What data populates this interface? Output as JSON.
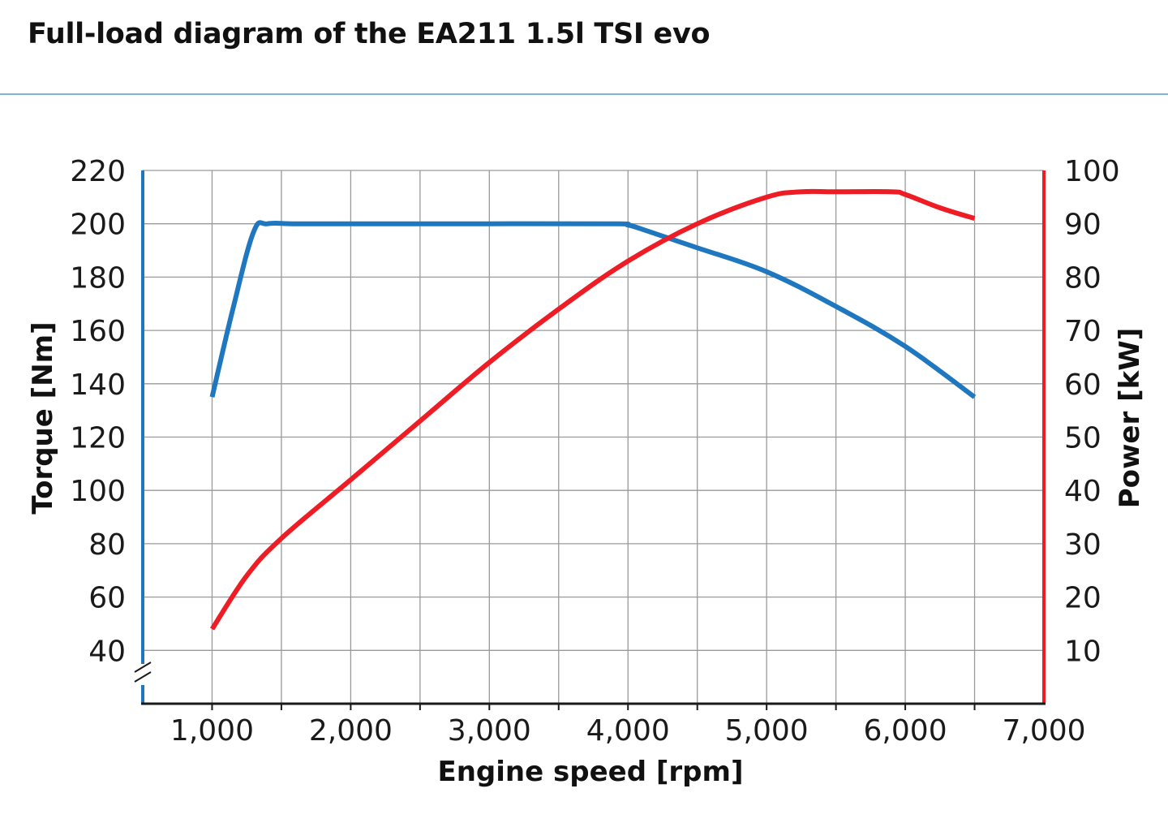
{
  "title": "Full-load diagram of the EA211 1.5l TSI evo",
  "colors": {
    "torque": "#1f77c0",
    "power": "#ee1c24",
    "grid": "#9a9a9a",
    "title_rule": "#7fb6d6"
  },
  "chart_data": {
    "type": "line",
    "title": "Full-load diagram of the EA211 1.5l TSI evo",
    "xlabel": "Engine speed [rpm]",
    "ylabel_left": "Torque [Nm]",
    "ylabel_right": "Power [kW]",
    "xlim": [
      500,
      7000
    ],
    "ylim_left": [
      20,
      220
    ],
    "ylim_right": [
      0,
      100
    ],
    "x_ticks": [
      {
        "value": 1000,
        "label": "1,000"
      },
      {
        "value": 2000,
        "label": "2,000"
      },
      {
        "value": 3000,
        "label": "3,000"
      },
      {
        "value": 4000,
        "label": "4,000"
      },
      {
        "value": 5000,
        "label": "5,000"
      },
      {
        "value": 6000,
        "label": "6,000"
      },
      {
        "value": 7000,
        "label": "7,000"
      }
    ],
    "left_ticks": [
      {
        "value": 40,
        "label": "40"
      },
      {
        "value": 60,
        "label": "60"
      },
      {
        "value": 80,
        "label": "80"
      },
      {
        "value": 100,
        "label": "100"
      },
      {
        "value": 120,
        "label": "120"
      },
      {
        "value": 140,
        "label": "140"
      },
      {
        "value": 160,
        "label": "160"
      },
      {
        "value": 180,
        "label": "180"
      },
      {
        "value": 200,
        "label": "200"
      },
      {
        "value": 220,
        "label": "220"
      }
    ],
    "right_ticks": [
      {
        "value": 10,
        "label": "10"
      },
      {
        "value": 20,
        "label": "20"
      },
      {
        "value": 30,
        "label": "30"
      },
      {
        "value": 40,
        "label": "40"
      },
      {
        "value": 50,
        "label": "50"
      },
      {
        "value": 60,
        "label": "60"
      },
      {
        "value": 70,
        "label": "70"
      },
      {
        "value": 80,
        "label": "80"
      },
      {
        "value": 90,
        "label": "90"
      },
      {
        "value": 100,
        "label": "100"
      }
    ],
    "grid_x": [
      1000,
      1500,
      2000,
      2500,
      3000,
      3500,
      4000,
      4500,
      5000,
      5500,
      6000,
      6500
    ],
    "grid_y_left": [
      40,
      60,
      80,
      100,
      120,
      140,
      160,
      180,
      200,
      220
    ],
    "grid": true,
    "legend": "none",
    "series": [
      {
        "axis": "left",
        "color": "#1f77c0",
        "x": [
          1000,
          1150,
          1300,
          1400,
          1600,
          2000,
          3000,
          3900,
          4000,
          4100,
          4500,
          5000,
          5500,
          6000,
          6500
        ],
        "y": [
          135,
          168,
          197,
          200,
          200,
          200,
          200,
          200,
          199.5,
          198,
          191,
          182,
          169,
          154,
          135
        ]
      },
      {
        "axis": "right",
        "color": "#ee1c24",
        "x": [
          1000,
          1250,
          1500,
          2000,
          2500,
          3000,
          3500,
          4000,
          4500,
          5000,
          5250,
          5500,
          5900,
          6000,
          6250,
          6500
        ],
        "y": [
          14,
          24,
          31,
          42,
          53,
          64,
          74,
          83,
          90,
          95,
          96,
          96,
          96,
          95.5,
          93,
          91
        ]
      }
    ]
  }
}
